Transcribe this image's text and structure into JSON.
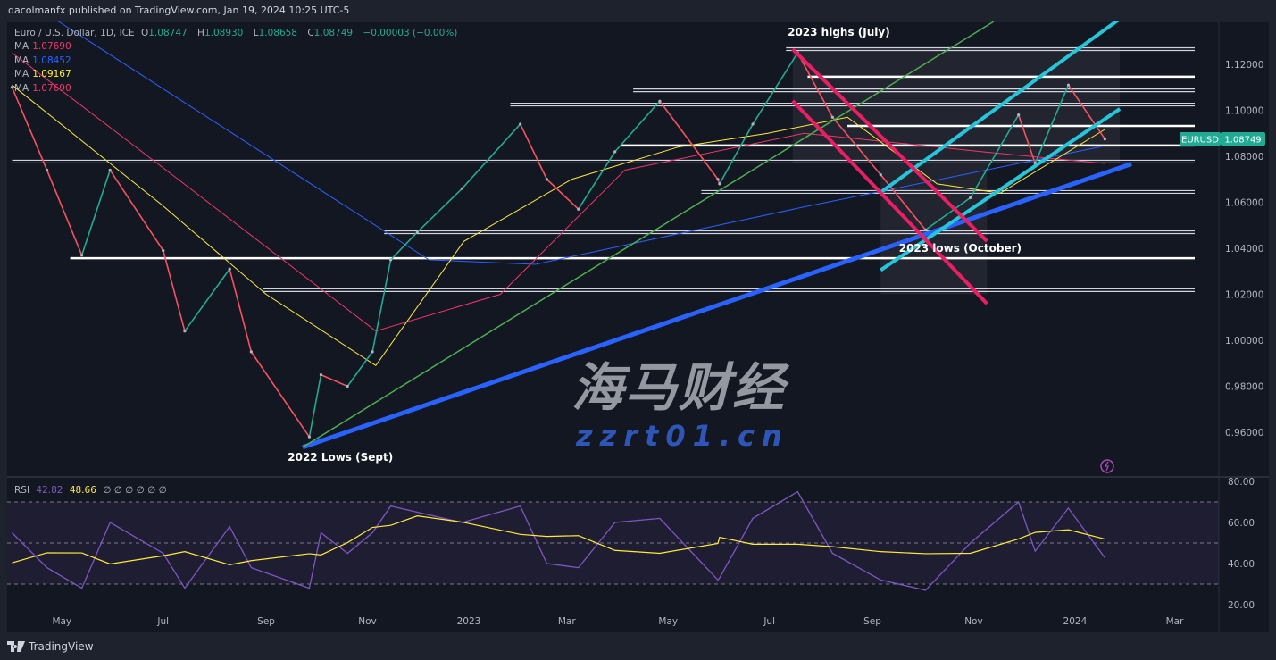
{
  "header": {
    "published": "dacolmanfx published on TradingView.com, Jan 19, 2024 10:25 UTC-5"
  },
  "legend": {
    "symbol": "Euro / U.S. Dollar, 1D, ICE",
    "open_label": "O",
    "open": "1.08747",
    "high_label": "H",
    "high": "1.08930",
    "low_label": "L",
    "low": "1.08658",
    "close_label": "C",
    "close": "1.08749",
    "change": "−0.00003 (−0.00%)",
    "mas": [
      {
        "label": "MA",
        "value": "1.07690",
        "color": "#f23668"
      },
      {
        "label": "MA",
        "value": "1.08452",
        "color": "#2962ff"
      },
      {
        "label": "MA",
        "value": "1.09167",
        "color": "#ffeb3b"
      },
      {
        "label": "MA",
        "value": "1.07690",
        "color": "#f23668"
      }
    ]
  },
  "rsi_legend": {
    "label": "RSI",
    "value": "42.82",
    "ma_value": "48.66",
    "extras": "∅ ∅ ∅ ∅ ∅ ∅"
  },
  "price_tag": {
    "symbol": "EURUSD",
    "value": "1.08749",
    "color": "#22ab94"
  },
  "footer": {
    "brand": "TradingView"
  },
  "watermark": {
    "cn": "海马财经",
    "url": "zzrt01.cn"
  },
  "colors": {
    "background": "#131722",
    "up": "#22ab94",
    "down": "#f7525f",
    "rsi": "#7e57c2",
    "rsi_ma": "#ffeb3b"
  },
  "chart_data": {
    "type": "line",
    "symbol": "EURUSD",
    "interval": "1D",
    "ylim": [
      0.945,
      1.135
    ],
    "price_ticks": [
      "1.12000",
      "1.10000",
      "1.08000",
      "1.06000",
      "1.04000",
      "1.02000",
      "1.00000",
      "0.98000",
      "0.96000"
    ],
    "x_ticks": [
      {
        "label": "May",
        "date": "2022-05-01"
      },
      {
        "label": "Jul",
        "date": "2022-07-01"
      },
      {
        "label": "Sep",
        "date": "2022-09-01"
      },
      {
        "label": "Nov",
        "date": "2022-11-01"
      },
      {
        "label": "2023",
        "date": "2023-01-01"
      },
      {
        "label": "Mar",
        "date": "2023-03-01"
      },
      {
        "label": "May",
        "date": "2023-05-01"
      },
      {
        "label": "Jul",
        "date": "2023-07-01"
      },
      {
        "label": "Sep",
        "date": "2023-09-01"
      },
      {
        "label": "Nov",
        "date": "2023-11-01"
      },
      {
        "label": "2024",
        "date": "2024-01-01"
      },
      {
        "label": "Mar",
        "date": "2024-03-01"
      }
    ],
    "close": [
      [
        "2022-04-01",
        1.11
      ],
      [
        "2022-04-22",
        1.074
      ],
      [
        "2022-05-13",
        1.037
      ],
      [
        "2022-05-30",
        1.074
      ],
      [
        "2022-07-01",
        1.039
      ],
      [
        "2022-07-14",
        1.004
      ],
      [
        "2022-08-10",
        1.031
      ],
      [
        "2022-08-23",
        0.995
      ],
      [
        "2022-09-27",
        0.958
      ],
      [
        "2022-10-04",
        0.985
      ],
      [
        "2022-10-20",
        0.98
      ],
      [
        "2022-11-04",
        0.995
      ],
      [
        "2022-11-15",
        1.035
      ],
      [
        "2022-12-01",
        1.047
      ],
      [
        "2022-12-28",
        1.066
      ],
      [
        "2023-02-01",
        1.094
      ],
      [
        "2023-02-17",
        1.07
      ],
      [
        "2023-03-08",
        1.057
      ],
      [
        "2023-03-30",
        1.082
      ],
      [
        "2023-04-26",
        1.104
      ],
      [
        "2023-05-31",
        1.07
      ],
      [
        "2023-06-01",
        1.068
      ],
      [
        "2023-06-21",
        1.094
      ],
      [
        "2023-07-18",
        1.125
      ],
      [
        "2023-08-08",
        1.097
      ],
      [
        "2023-09-06",
        1.072
      ],
      [
        "2023-10-03",
        1.048
      ],
      [
        "2023-10-30",
        1.062
      ],
      [
        "2023-11-28",
        1.098
      ],
      [
        "2023-12-08",
        1.077
      ],
      [
        "2023-12-28",
        1.111
      ],
      [
        "2024-01-19",
        1.0875
      ]
    ],
    "moving_averages": [
      {
        "color": "#2962ff",
        "points": [
          [
            "2022-04-26",
            1.14
          ],
          [
            "2022-12-08",
            1.035
          ],
          [
            "2023-02-10",
            1.033
          ],
          [
            "2023-07-22",
            1.058
          ],
          [
            "2024-01-19",
            1.0845
          ]
        ]
      },
      {
        "color": "#f23668",
        "points": [
          [
            "2022-04-01",
            1.125
          ],
          [
            "2022-07-10",
            1.07
          ],
          [
            "2022-11-06",
            1.004
          ],
          [
            "2023-01-20",
            1.02
          ],
          [
            "2023-04-05",
            1.074
          ],
          [
            "2023-07-22",
            1.09
          ],
          [
            "2023-11-06",
            1.082
          ],
          [
            "2024-01-19",
            1.0769
          ]
        ]
      },
      {
        "color": "#ffeb3b",
        "points": [
          [
            "2022-04-01",
            1.111
          ],
          [
            "2022-06-30",
            1.059
          ],
          [
            "2022-09-01",
            1.02
          ],
          [
            "2022-11-06",
            0.989
          ],
          [
            "2022-12-29",
            1.043
          ],
          [
            "2023-03-04",
            1.07
          ],
          [
            "2023-05-07",
            1.084
          ],
          [
            "2023-06-30",
            1.09
          ],
          [
            "2023-08-17",
            1.097
          ],
          [
            "2023-10-10",
            1.068
          ],
          [
            "2023-11-17",
            1.064
          ],
          [
            "2024-01-19",
            1.0917
          ]
        ]
      }
    ],
    "horizontal_levels": [
      {
        "price": 1.1266,
        "from": "2023-07-11",
        "style": "double"
      },
      {
        "price": 1.1146,
        "from": "2023-07-24",
        "style": "single"
      },
      {
        "price": 1.1087,
        "from": "2023-04-10",
        "style": "double"
      },
      {
        "price": 1.1025,
        "from": "2023-01-26",
        "style": "double"
      },
      {
        "price": 1.0932,
        "from": "2023-08-17",
        "style": "single"
      },
      {
        "price": 1.0847,
        "from": "2023-04-03",
        "style": "single"
      },
      {
        "price": 1.0777,
        "from": "2022-04-01",
        "style": "double"
      },
      {
        "price": 1.0645,
        "from": "2023-05-21",
        "style": "double"
      },
      {
        "price": 1.047,
        "from": "2022-11-11",
        "style": "double"
      },
      {
        "price": 1.0357,
        "from": "2022-05-06",
        "style": "single"
      },
      {
        "price": 1.0218,
        "from": "2022-08-30",
        "style": "double"
      }
    ],
    "trendlines": [
      {
        "color": "#2962ff",
        "from": [
          "2022-09-23",
          0.9535
        ],
        "to": [
          "2024-02-04",
          1.0767
        ],
        "weight": "thick"
      },
      {
        "color": "#4caf50",
        "from": [
          "2022-09-23",
          0.9535
        ],
        "to": [
          "2023-11-13",
          1.1386
        ],
        "weight": "thin"
      },
      {
        "color": "#26c6da",
        "from": [
          "2023-09-06",
          1.0643
        ],
        "to": [
          "2024-01-28",
          1.1398
        ],
        "weight": "medium"
      },
      {
        "color": "#26c6da",
        "from": [
          "2023-09-06",
          1.0305
        ],
        "to": [
          "2024-01-28",
          1.1006
        ],
        "weight": "medium"
      },
      {
        "color": "#e91e63",
        "from": [
          "2023-07-15",
          1.1266
        ],
        "to": [
          "2023-11-09",
          1.0431
        ],
        "weight": "medium"
      },
      {
        "color": "#e91e63",
        "from": [
          "2023-07-15",
          1.1041
        ],
        "to": [
          "2023-11-09",
          1.0159
        ],
        "weight": "medium"
      }
    ],
    "zones": [
      {
        "from": "2023-07-15",
        "to": "2024-01-28",
        "top": 1.127,
        "bottom": 1.077
      },
      {
        "from": "2023-09-06",
        "to": "2023-11-09",
        "top": 1.077,
        "bottom": 1.02
      }
    ],
    "annotations": [
      {
        "text": "2023 highs (July)",
        "date": "2023-07-12",
        "price": 1.1325
      },
      {
        "text": "2023 lows (October)",
        "date": "2023-09-17",
        "price": 1.0385
      },
      {
        "text": "2022 Lows (Sept)",
        "date": "2022-09-14",
        "price": 0.9475
      }
    ],
    "rsi": {
      "levels": [
        70,
        50,
        30
      ],
      "ticks": [
        "80.00",
        "60.00",
        "40.00",
        "20.00"
      ],
      "values": [
        [
          "2022-04-01",
          55
        ],
        [
          "2022-04-22",
          38
        ],
        [
          "2022-05-13",
          28
        ],
        [
          "2022-05-30",
          60
        ],
        [
          "2022-07-01",
          45
        ],
        [
          "2022-07-14",
          28
        ],
        [
          "2022-08-10",
          58
        ],
        [
          "2022-08-23",
          38
        ],
        [
          "2022-09-27",
          28
        ],
        [
          "2022-10-04",
          55
        ],
        [
          "2022-10-20",
          45
        ],
        [
          "2022-11-04",
          55
        ],
        [
          "2022-11-15",
          68
        ],
        [
          "2022-12-01",
          65
        ],
        [
          "2022-12-28",
          60
        ],
        [
          "2023-02-01",
          68
        ],
        [
          "2023-02-17",
          40
        ],
        [
          "2023-03-08",
          38
        ],
        [
          "2023-03-30",
          60
        ],
        [
          "2023-04-26",
          62
        ],
        [
          "2023-05-31",
          32
        ],
        [
          "2023-06-01",
          33
        ],
        [
          "2023-06-21",
          62
        ],
        [
          "2023-07-18",
          75
        ],
        [
          "2023-08-08",
          45
        ],
        [
          "2023-09-06",
          32
        ],
        [
          "2023-10-03",
          27
        ],
        [
          "2023-10-30",
          50
        ],
        [
          "2023-11-28",
          70
        ],
        [
          "2023-12-08",
          46
        ],
        [
          "2023-12-28",
          67
        ],
        [
          "2024-01-19",
          42.82
        ]
      ]
    }
  }
}
